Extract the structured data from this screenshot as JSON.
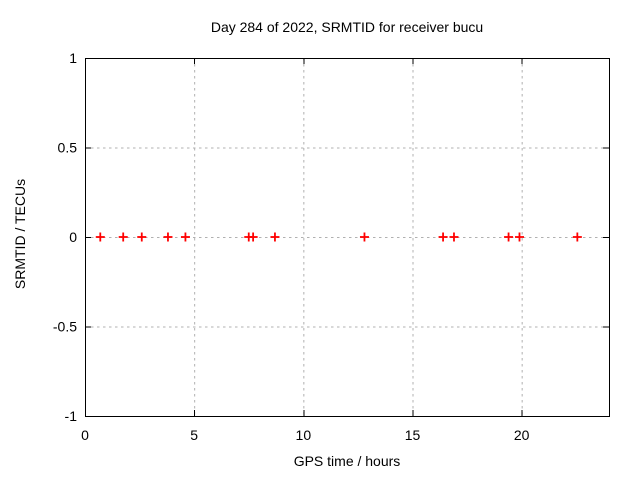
{
  "chart_data": {
    "type": "scatter",
    "title": "Day 284 of 2022, SRMTID for receiver bucu",
    "xlabel": "GPS time / hours",
    "ylabel": "SRMTID / TECUs",
    "xlim": [
      0,
      24
    ],
    "ylim": [
      -1,
      1
    ],
    "grid": true,
    "legend": "none",
    "xticks": {
      "values": [
        0,
        5,
        10,
        15,
        20
      ],
      "labels": [
        "0",
        "5",
        "10",
        "15",
        "20"
      ]
    },
    "yticks": {
      "values": [
        1,
        0.5,
        0,
        -0.5,
        -1
      ],
      "labels": [
        "1",
        "0.5",
        "0",
        "-0.5",
        "-1"
      ]
    },
    "series": [
      {
        "name": "SRMTID",
        "marker": "plus",
        "color": "#ff0000",
        "points": [
          [
            0.7,
            0
          ],
          [
            1.75,
            0
          ],
          [
            2.6,
            0
          ],
          [
            3.8,
            0
          ],
          [
            4.6,
            0
          ],
          [
            7.5,
            0
          ],
          [
            7.7,
            0
          ],
          [
            8.7,
            0
          ],
          [
            12.8,
            0
          ],
          [
            16.4,
            0
          ],
          [
            16.9,
            0
          ],
          [
            19.4,
            0
          ],
          [
            19.9,
            0
          ],
          [
            22.55,
            0
          ]
        ]
      }
    ],
    "colors": {
      "background": "#ffffff",
      "axis": "#000000",
      "grid": "#b0b0b0",
      "text": "#000000",
      "marker": "#ff0000"
    }
  }
}
